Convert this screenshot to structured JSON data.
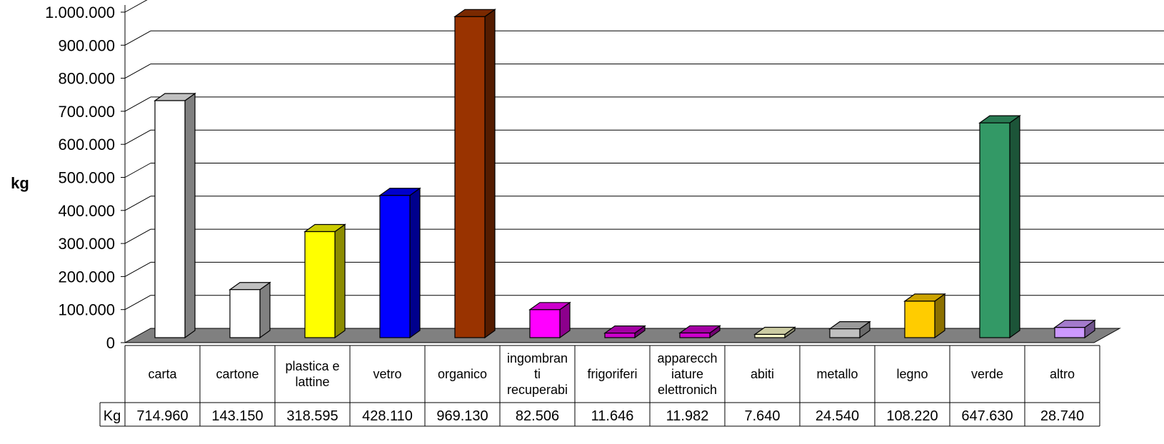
{
  "chart_data": {
    "type": "bar",
    "ylabel": "kg",
    "ylim": [
      0,
      1000000
    ],
    "yticks": [
      "0",
      "100.000",
      "200.000",
      "300.000",
      "400.000",
      "500.000",
      "600.000",
      "700.000",
      "800.000",
      "900.000",
      "1.000.000"
    ],
    "categories": [
      [
        "carta"
      ],
      [
        "cartone"
      ],
      [
        "plastica e",
        "lattine"
      ],
      [
        "vetro"
      ],
      [
        "organico"
      ],
      [
        "ingombran",
        "ti",
        "recuperabi"
      ],
      [
        "frigoriferi"
      ],
      [
        "apparecch",
        "iature",
        "elettronich"
      ],
      [
        "abiti"
      ],
      [
        "metallo"
      ],
      [
        "legno"
      ],
      [
        "verde"
      ],
      [
        "altro"
      ]
    ],
    "series": [
      {
        "name": "Kg",
        "values": [
          714960,
          143150,
          318595,
          428110,
          969130,
          82506,
          11646,
          11982,
          7640,
          24540,
          108220,
          647630,
          28740
        ],
        "labels": [
          "714.960",
          "143.150",
          "318.595",
          "428.110",
          "969.130",
          "82.506",
          "11.646",
          "11.982",
          "7.640",
          "24.540",
          "108.220",
          "647.630",
          "28.740"
        ]
      }
    ],
    "bar_colors": [
      "#ffffff",
      "#ffffff",
      "#ffff00",
      "#0000ff",
      "#993300",
      "#ff00ff",
      "#cc00cc",
      "#cc00cc",
      "#ffffcc",
      "#c0c0c0",
      "#ffcc00",
      "#339966",
      "#cc99ff"
    ],
    "grid": true,
    "data_table": true
  }
}
